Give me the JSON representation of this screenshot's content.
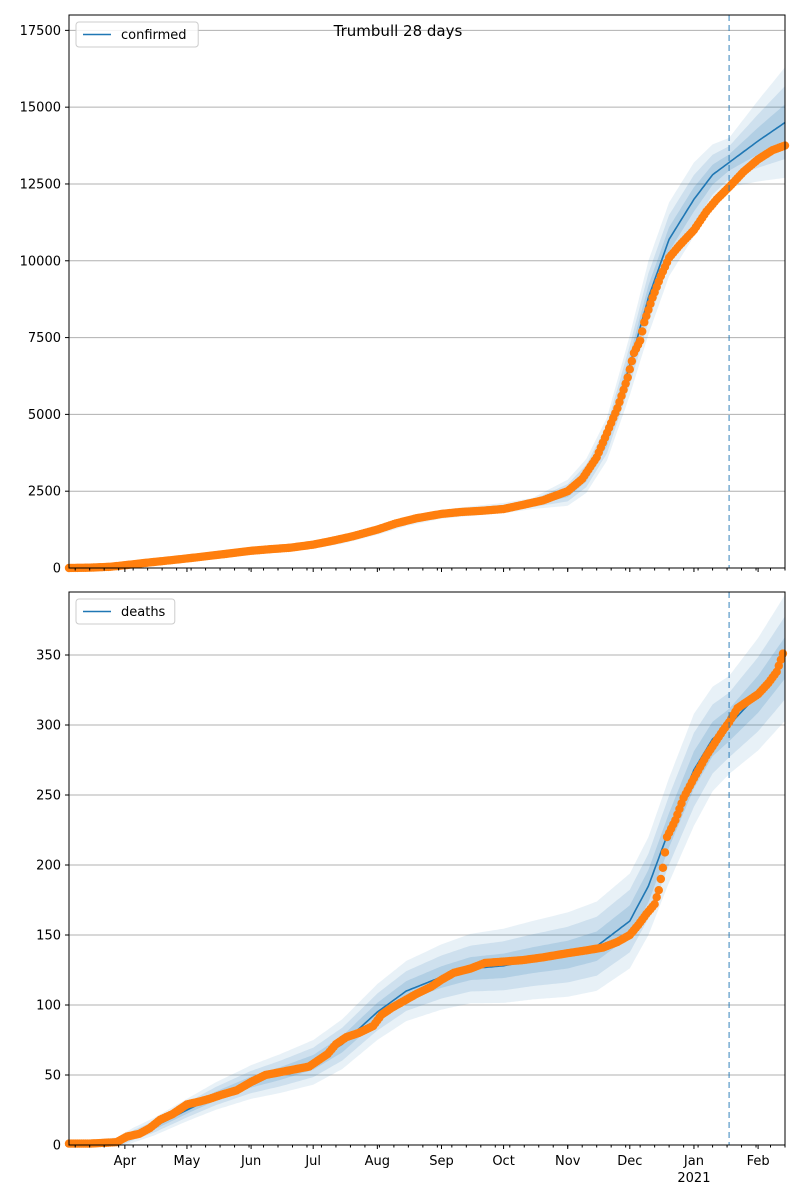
{
  "title": "Trumbull 28 days",
  "colors": {
    "model": "#1f77b4",
    "observed": "#ff7f0e",
    "band": "#1f77b4",
    "grid": "#b0b0b0",
    "vline": "#1f77b4"
  },
  "x_axis": {
    "month_labels": [
      {
        "label": "Apr",
        "date": "2020-04-01"
      },
      {
        "label": "May",
        "date": "2020-05-01"
      },
      {
        "label": "Jun",
        "date": "2020-06-01"
      },
      {
        "label": "Jul",
        "date": "2020-07-01"
      },
      {
        "label": "Aug",
        "date": "2020-08-01"
      },
      {
        "label": "Sep",
        "date": "2020-09-01"
      },
      {
        "label": "Oct",
        "date": "2020-10-01"
      },
      {
        "label": "Nov",
        "date": "2020-11-01"
      },
      {
        "label": "Dec",
        "date": "2020-12-01"
      },
      {
        "label": "Jan",
        "date": "2021-01-01"
      },
      {
        "label": "Feb",
        "date": "2021-02-01"
      }
    ],
    "year_label": "2021",
    "range": [
      "2020-03-05",
      "2021-02-14"
    ],
    "forecast_start": "2021-01-18"
  },
  "chart_data": [
    {
      "type": "line",
      "legend": "confirmed",
      "legend_position": "upper left",
      "ylim": [
        0,
        18000
      ],
      "yticks": [
        0,
        2500,
        5000,
        7500,
        10000,
        12500,
        15000,
        17500
      ],
      "grid": true,
      "model_curve": [
        [
          "2020-03-05",
          0
        ],
        [
          "2020-03-20",
          20
        ],
        [
          "2020-04-01",
          80
        ],
        [
          "2020-04-15",
          180
        ],
        [
          "2020-05-01",
          320
        ],
        [
          "2020-05-15",
          420
        ],
        [
          "2020-06-01",
          540
        ],
        [
          "2020-06-15",
          620
        ],
        [
          "2020-07-01",
          730
        ],
        [
          "2020-07-15",
          900
        ],
        [
          "2020-08-01",
          1200
        ],
        [
          "2020-08-15",
          1500
        ],
        [
          "2020-09-01",
          1750
        ],
        [
          "2020-09-15",
          1850
        ],
        [
          "2020-10-01",
          1950
        ],
        [
          "2020-10-15",
          2100
        ],
        [
          "2020-11-01",
          2450
        ],
        [
          "2020-11-10",
          3000
        ],
        [
          "2020-11-20",
          4200
        ],
        [
          "2020-12-01",
          6600
        ],
        [
          "2020-12-10",
          8800
        ],
        [
          "2020-12-20",
          10700
        ],
        [
          "2021-01-01",
          12000
        ],
        [
          "2021-01-10",
          12800
        ],
        [
          "2021-01-18",
          13200
        ],
        [
          "2021-02-01",
          13900
        ],
        [
          "2021-02-14",
          14500
        ]
      ],
      "band_widths": [
        [
          "2020-03-05",
          30
        ],
        [
          "2020-08-01",
          120
        ],
        [
          "2020-10-15",
          180
        ],
        [
          "2020-11-20",
          700
        ],
        [
          "2020-12-10",
          1200
        ],
        [
          "2021-01-01",
          1200
        ],
        [
          "2021-01-18",
          800
        ],
        [
          "2021-02-14",
          1800
        ]
      ],
      "observed": [
        [
          "2020-03-05",
          0
        ],
        [
          "2020-03-15",
          10
        ],
        [
          "2020-03-25",
          40
        ],
        [
          "2020-04-01",
          90
        ],
        [
          "2020-04-10",
          160
        ],
        [
          "2020-04-20",
          230
        ],
        [
          "2020-05-01",
          310
        ],
        [
          "2020-05-10",
          380
        ],
        [
          "2020-05-20",
          460
        ],
        [
          "2020-06-01",
          560
        ],
        [
          "2020-06-10",
          610
        ],
        [
          "2020-06-20",
          660
        ],
        [
          "2020-07-01",
          760
        ],
        [
          "2020-07-10",
          880
        ],
        [
          "2020-07-20",
          1030
        ],
        [
          "2020-08-01",
          1250
        ],
        [
          "2020-08-10",
          1450
        ],
        [
          "2020-08-20",
          1620
        ],
        [
          "2020-09-01",
          1760
        ],
        [
          "2020-09-10",
          1820
        ],
        [
          "2020-09-20",
          1860
        ],
        [
          "2020-10-01",
          1920
        ],
        [
          "2020-10-10",
          2050
        ],
        [
          "2020-10-20",
          2200
        ],
        [
          "2020-11-01",
          2500
        ],
        [
          "2020-11-08",
          2900
        ],
        [
          "2020-11-15",
          3600
        ],
        [
          "2020-11-20",
          4400
        ],
        [
          "2020-11-25",
          5200
        ],
        [
          "2020-11-30",
          6200
        ],
        [
          "2020-12-03",
          7000
        ],
        [
          "2020-12-06",
          7400
        ],
        [
          "2020-12-08",
          8000
        ],
        [
          "2020-12-12",
          8800
        ],
        [
          "2020-12-16",
          9500
        ],
        [
          "2020-12-20",
          10100
        ],
        [
          "2020-12-25",
          10500
        ],
        [
          "2021-01-01",
          11000
        ],
        [
          "2021-01-07",
          11600
        ],
        [
          "2021-01-12",
          12000
        ],
        [
          "2021-01-18",
          12400
        ],
        [
          "2021-01-25",
          12900
        ],
        [
          "2021-02-01",
          13300
        ],
        [
          "2021-02-08",
          13600
        ],
        [
          "2021-02-14",
          13750
        ]
      ]
    },
    {
      "type": "line",
      "legend": "deaths",
      "legend_position": "upper left",
      "ylim": [
        0,
        395
      ],
      "yticks": [
        0,
        50,
        100,
        150,
        200,
        250,
        300,
        350
      ],
      "grid": true,
      "model_curve": [
        [
          "2020-03-05",
          0
        ],
        [
          "2020-03-28",
          1
        ],
        [
          "2020-04-05",
          7
        ],
        [
          "2020-04-15",
          13
        ],
        [
          "2020-05-01",
          25
        ],
        [
          "2020-05-15",
          35
        ],
        [
          "2020-06-01",
          45
        ],
        [
          "2020-06-15",
          51
        ],
        [
          "2020-07-01",
          59
        ],
        [
          "2020-07-15",
          72
        ],
        [
          "2020-08-01",
          95
        ],
        [
          "2020-08-15",
          110
        ],
        [
          "2020-09-01",
          120
        ],
        [
          "2020-09-15",
          126
        ],
        [
          "2020-10-01",
          128
        ],
        [
          "2020-10-15",
          132
        ],
        [
          "2020-11-01",
          136
        ],
        [
          "2020-11-15",
          142
        ],
        [
          "2020-12-01",
          160
        ],
        [
          "2020-12-10",
          185
        ],
        [
          "2020-12-20",
          225
        ],
        [
          "2021-01-01",
          268
        ],
        [
          "2021-01-10",
          290
        ],
        [
          "2021-01-18",
          300
        ],
        [
          "2021-02-01",
          322
        ],
        [
          "2021-02-14",
          348
        ]
      ],
      "band_widths": [
        [
          "2020-03-05",
          2
        ],
        [
          "2020-05-01",
          8
        ],
        [
          "2020-08-01",
          20
        ],
        [
          "2020-10-15",
          28
        ],
        [
          "2020-12-10",
          35
        ],
        [
          "2021-01-01",
          40
        ],
        [
          "2021-01-18",
          35
        ],
        [
          "2021-02-14",
          45
        ]
      ],
      "observed": [
        [
          "2020-03-05",
          1
        ],
        [
          "2020-03-15",
          1
        ],
        [
          "2020-03-28",
          2
        ],
        [
          "2020-04-02",
          6
        ],
        [
          "2020-04-08",
          8
        ],
        [
          "2020-04-13",
          12
        ],
        [
          "2020-04-18",
          18
        ],
        [
          "2020-04-24",
          22
        ],
        [
          "2020-05-01",
          29
        ],
        [
          "2020-05-07",
          31
        ],
        [
          "2020-05-12",
          33
        ],
        [
          "2020-05-18",
          36
        ],
        [
          "2020-05-25",
          39
        ],
        [
          "2020-06-01",
          45
        ],
        [
          "2020-06-08",
          50
        ],
        [
          "2020-06-15",
          52
        ],
        [
          "2020-06-22",
          54
        ],
        [
          "2020-06-29",
          56
        ],
        [
          "2020-07-03",
          60
        ],
        [
          "2020-07-08",
          65
        ],
        [
          "2020-07-12",
          72
        ],
        [
          "2020-07-17",
          77
        ],
        [
          "2020-07-23",
          80
        ],
        [
          "2020-07-30",
          85
        ],
        [
          "2020-08-03",
          93
        ],
        [
          "2020-08-08",
          98
        ],
        [
          "2020-08-14",
          103
        ],
        [
          "2020-08-20",
          108
        ],
        [
          "2020-08-27",
          113
        ],
        [
          "2020-09-01",
          118
        ],
        [
          "2020-09-07",
          123
        ],
        [
          "2020-09-15",
          126
        ],
        [
          "2020-09-22",
          130
        ],
        [
          "2020-10-01",
          131
        ],
        [
          "2020-10-10",
          132
        ],
        [
          "2020-10-20",
          134
        ],
        [
          "2020-11-01",
          137
        ],
        [
          "2020-11-10",
          139
        ],
        [
          "2020-11-18",
          141
        ],
        [
          "2020-11-25",
          145
        ],
        [
          "2020-12-01",
          150
        ],
        [
          "2020-12-05",
          157
        ],
        [
          "2020-12-09",
          165
        ],
        [
          "2020-12-13",
          172
        ],
        [
          "2020-12-15",
          182
        ],
        [
          "2020-12-17",
          198
        ],
        [
          "2020-12-19",
          220
        ],
        [
          "2020-12-23",
          232
        ],
        [
          "2020-12-27",
          248
        ],
        [
          "2021-01-01",
          262
        ],
        [
          "2021-01-04",
          270
        ],
        [
          "2021-01-07",
          278
        ],
        [
          "2021-01-11",
          287
        ],
        [
          "2021-01-15",
          296
        ],
        [
          "2021-01-18",
          302
        ],
        [
          "2021-01-22",
          312
        ],
        [
          "2021-01-27",
          317
        ],
        [
          "2021-02-01",
          322
        ],
        [
          "2021-02-06",
          330
        ],
        [
          "2021-02-10",
          338
        ],
        [
          "2021-02-13",
          351
        ]
      ]
    }
  ]
}
